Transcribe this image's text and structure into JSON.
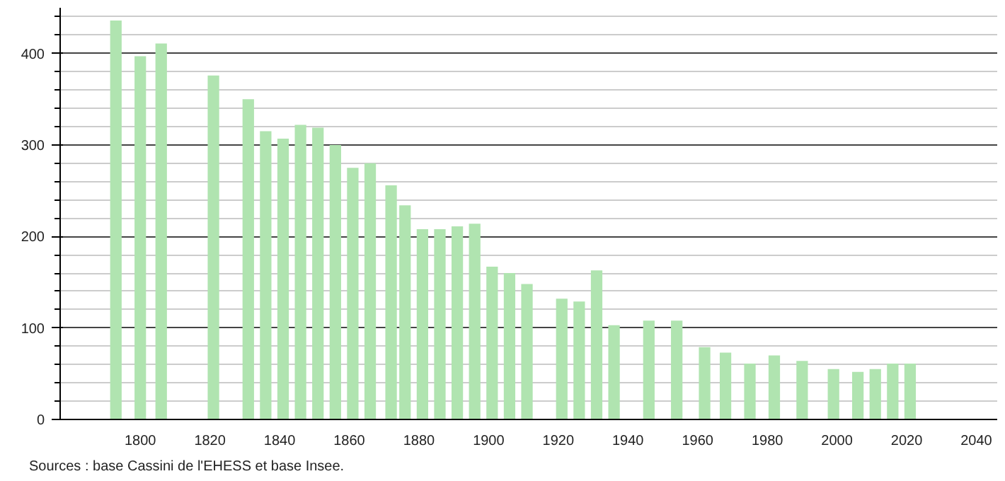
{
  "chart_data": {
    "type": "bar",
    "x": [
      1793,
      1800,
      1806,
      1821,
      1831,
      1836,
      1841,
      1846,
      1851,
      1856,
      1861,
      1866,
      1872,
      1876,
      1881,
      1886,
      1891,
      1896,
      1901,
      1906,
      1911,
      1921,
      1926,
      1931,
      1936,
      1946,
      1954,
      1962,
      1968,
      1975,
      1982,
      1990,
      1999,
      2006,
      2011,
      2016,
      2021
    ],
    "values": [
      436,
      397,
      411,
      376,
      350,
      315,
      307,
      322,
      319,
      300,
      275,
      280,
      256,
      234,
      208,
      208,
      211,
      214,
      167,
      160,
      148,
      132,
      129,
      163,
      103,
      108,
      108,
      79,
      73,
      61,
      70,
      64,
      55,
      52,
      55,
      61,
      61
    ],
    "color": "#b0e4b0",
    "xlim": [
      1777,
      2046
    ],
    "xticks": [
      1800,
      1820,
      1840,
      1860,
      1880,
      1900,
      1920,
      1940,
      1960,
      1980,
      2000,
      2020,
      2040
    ],
    "ylim": [
      0,
      450
    ],
    "yticks": [
      0,
      100,
      200,
      300,
      400
    ],
    "grid": "y",
    "annotations": [
      "Sources : base Cassini de l'EHESS et base Insee."
    ]
  }
}
